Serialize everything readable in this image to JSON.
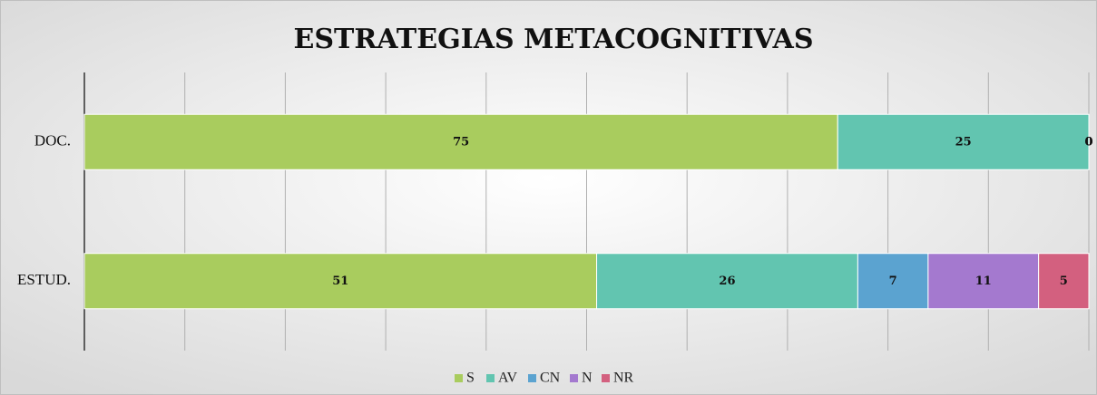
{
  "chart_data": {
    "type": "stacked-barh",
    "title": "ESTRATEGIAS METACOGNITIVAS",
    "categories": [
      "DOC.",
      "ESTUD."
    ],
    "series": [
      {
        "name": "S",
        "color": "#a9cc5e",
        "values": [
          75,
          51
        ]
      },
      {
        "name": "AV",
        "color": "#62c5b0",
        "values": [
          25,
          26
        ]
      },
      {
        "name": "CN",
        "color": "#5ba3d0",
        "values": [
          0,
          7
        ]
      },
      {
        "name": "N",
        "color": "#a479cf",
        "values": [
          0,
          11
        ]
      },
      {
        "name": "NR",
        "color": "#d3607f",
        "values": [
          0,
          5
        ]
      }
    ],
    "xlim": [
      0,
      100
    ],
    "xticks": [
      0,
      10,
      20,
      30,
      40,
      50,
      60,
      70,
      80,
      90,
      100
    ],
    "grid": true,
    "legend": "bottom"
  }
}
